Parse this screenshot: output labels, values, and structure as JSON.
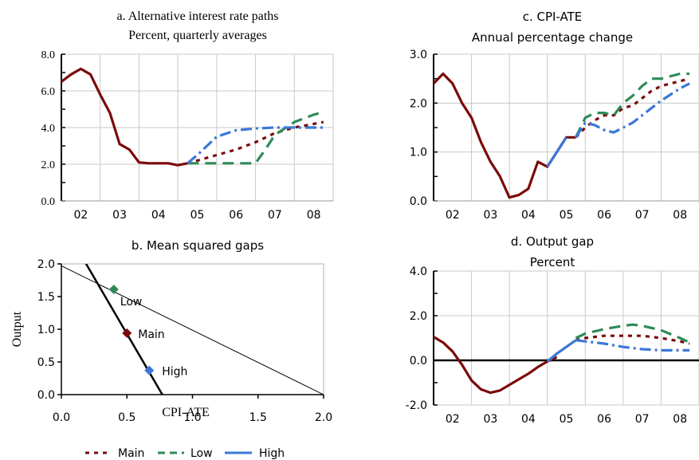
{
  "colors": {
    "main": "#7b0a0a",
    "low": "#2e8b57",
    "high": "#3a78d8"
  },
  "legend": {
    "main": "Main",
    "low": "Low",
    "high": "High"
  },
  "chart_data": [
    {
      "id": "a",
      "type": "line",
      "title": "a. Alternative interest rate paths",
      "subtitle": "Percent, quarterly averages",
      "ylim": [
        0,
        8
      ],
      "yticks": [
        "0.0",
        "2.0",
        "4.0",
        "6.0",
        "8.0"
      ],
      "xlim": [
        2002,
        2009
      ],
      "xticks": [
        "02",
        "03",
        "04",
        "05",
        "06",
        "07",
        "08"
      ],
      "grid": true,
      "series": [
        {
          "name": "Main",
          "style": "solid",
          "points": [
            [
              2002.0,
              6.5
            ],
            [
              2002.25,
              6.9
            ],
            [
              2002.5,
              7.2
            ],
            [
              2002.75,
              6.9
            ],
            [
              2003.0,
              5.8
            ],
            [
              2003.25,
              4.8
            ],
            [
              2003.5,
              3.1
            ],
            [
              2003.75,
              2.8
            ],
            [
              2004.0,
              2.1
            ],
            [
              2004.25,
              2.05
            ],
            [
              2004.5,
              2.05
            ],
            [
              2004.75,
              2.05
            ],
            [
              2005.0,
              1.95
            ],
            [
              2005.25,
              2.05
            ]
          ]
        },
        {
          "name": "Main",
          "style": "dotted",
          "points": [
            [
              2005.25,
              2.05
            ],
            [
              2005.5,
              2.2
            ],
            [
              2006.0,
              2.5
            ],
            [
              2006.5,
              2.8
            ],
            [
              2007.0,
              3.2
            ],
            [
              2007.5,
              3.7
            ],
            [
              2008.0,
              4.0
            ],
            [
              2008.75,
              4.3
            ]
          ]
        },
        {
          "name": "Low",
          "style": "dashed",
          "points": [
            [
              2005.25,
              2.05
            ],
            [
              2006.0,
              2.05
            ],
            [
              2006.5,
              2.05
            ],
            [
              2007.0,
              2.05
            ],
            [
              2007.25,
              2.8
            ],
            [
              2007.5,
              3.6
            ],
            [
              2008.0,
              4.3
            ],
            [
              2008.5,
              4.7
            ],
            [
              2008.75,
              4.85
            ]
          ]
        },
        {
          "name": "High",
          "style": "dashdot",
          "points": [
            [
              2005.25,
              2.05
            ],
            [
              2005.5,
              2.5
            ],
            [
              2005.75,
              3.0
            ],
            [
              2006.0,
              3.5
            ],
            [
              2006.5,
              3.85
            ],
            [
              2007.0,
              3.95
            ],
            [
              2007.5,
              4.0
            ],
            [
              2008.0,
              4.0
            ],
            [
              2008.75,
              4.0
            ]
          ]
        }
      ]
    },
    {
      "id": "c",
      "type": "line",
      "title": "c. CPI-ATE",
      "subtitle": "Annual percentage change",
      "ylim": [
        0,
        3
      ],
      "yticks": [
        "0.0",
        "1.0",
        "2.0",
        "3.0"
      ],
      "xlim": [
        2002,
        2009
      ],
      "xticks": [
        "02",
        "03",
        "04",
        "05",
        "06",
        "07",
        "08"
      ],
      "grid": true,
      "series": [
        {
          "name": "Main",
          "style": "solid",
          "points": [
            [
              2002.0,
              2.4
            ],
            [
              2002.25,
              2.6
            ],
            [
              2002.5,
              2.4
            ],
            [
              2002.75,
              2.0
            ],
            [
              2003.0,
              1.7
            ],
            [
              2003.25,
              1.2
            ],
            [
              2003.5,
              0.8
            ],
            [
              2003.75,
              0.5
            ],
            [
              2004.0,
              0.07
            ],
            [
              2004.25,
              0.12
            ],
            [
              2004.5,
              0.25
            ],
            [
              2004.75,
              0.8
            ],
            [
              2005.0,
              0.7
            ],
            [
              2005.25,
              1.0
            ],
            [
              2005.5,
              1.3
            ],
            [
              2005.75,
              1.3
            ]
          ]
        },
        {
          "name": "High",
          "style": "solid",
          "points": [
            [
              2005.0,
              0.7
            ],
            [
              2005.25,
              1.0
            ],
            [
              2005.5,
              1.3
            ]
          ]
        },
        {
          "name": "Main",
          "style": "dotted",
          "points": [
            [
              2005.75,
              1.3
            ],
            [
              2006.0,
              1.5
            ],
            [
              2006.25,
              1.65
            ],
            [
              2006.5,
              1.75
            ],
            [
              2006.75,
              1.75
            ],
            [
              2007.0,
              1.9
            ],
            [
              2007.25,
              1.95
            ],
            [
              2007.5,
              2.1
            ],
            [
              2007.75,
              2.25
            ],
            [
              2008.0,
              2.35
            ],
            [
              2008.5,
              2.45
            ],
            [
              2008.75,
              2.5
            ]
          ]
        },
        {
          "name": "Low",
          "style": "dashed",
          "points": [
            [
              2005.75,
              1.3
            ],
            [
              2006.0,
              1.7
            ],
            [
              2006.25,
              1.8
            ],
            [
              2006.5,
              1.8
            ],
            [
              2006.75,
              1.75
            ],
            [
              2007.0,
              2.0
            ],
            [
              2007.25,
              2.15
            ],
            [
              2007.5,
              2.35
            ],
            [
              2007.75,
              2.5
            ],
            [
              2008.0,
              2.5
            ],
            [
              2008.5,
              2.6
            ],
            [
              2008.75,
              2.6
            ]
          ]
        },
        {
          "name": "High",
          "style": "dashdot",
          "points": [
            [
              2005.75,
              1.3
            ],
            [
              2006.0,
              1.6
            ],
            [
              2006.25,
              1.55
            ],
            [
              2006.5,
              1.45
            ],
            [
              2006.75,
              1.4
            ],
            [
              2007.0,
              1.5
            ],
            [
              2007.25,
              1.6
            ],
            [
              2007.5,
              1.75
            ],
            [
              2007.75,
              1.9
            ],
            [
              2008.0,
              2.05
            ],
            [
              2008.5,
              2.3
            ],
            [
              2008.75,
              2.4
            ]
          ]
        }
      ]
    },
    {
      "id": "b",
      "type": "scatter",
      "title": "b. Mean squared gaps",
      "xlabel": "CPI-ATE",
      "ylabel": "Output",
      "xlim": [
        0,
        2
      ],
      "ylim": [
        0,
        2
      ],
      "xticks": [
        "0.0",
        "0.5",
        "1.0",
        "1.5",
        "2.0"
      ],
      "yticks": [
        "0.0",
        "0.5",
        "1.0",
        "1.5",
        "2.0"
      ],
      "grid": false,
      "lines": [
        {
          "style": "thick",
          "from": [
            0.16,
            2.1
          ],
          "to": [
            0.77,
            0.0
          ]
        },
        {
          "style": "thin",
          "from": [
            0.0,
            1.97
          ],
          "to": [
            2.0,
            0.0
          ]
        }
      ],
      "points": [
        {
          "name": "Low",
          "x": 0.4,
          "y": 1.61
        },
        {
          "name": "Main",
          "x": 0.5,
          "y": 0.94
        },
        {
          "name": "High",
          "x": 0.67,
          "y": 0.37
        }
      ],
      "labels": [
        "Low",
        "Main",
        "High"
      ]
    },
    {
      "id": "d",
      "type": "line",
      "title": "d. Output gap",
      "subtitle": "Percent",
      "ylim": [
        -2,
        4
      ],
      "yticks": [
        "-2.0",
        "0.0",
        "2.0",
        "4.0"
      ],
      "xlim": [
        2002,
        2009
      ],
      "xticks": [
        "02",
        "03",
        "04",
        "05",
        "06",
        "07",
        "08"
      ],
      "grid": true,
      "series": [
        {
          "name": "Main",
          "style": "solid",
          "points": [
            [
              2002.0,
              1.05
            ],
            [
              2002.25,
              0.8
            ],
            [
              2002.5,
              0.4
            ],
            [
              2002.75,
              -0.2
            ],
            [
              2003.0,
              -0.9
            ],
            [
              2003.25,
              -1.3
            ],
            [
              2003.5,
              -1.45
            ],
            [
              2003.75,
              -1.35
            ],
            [
              2004.0,
              -1.1
            ],
            [
              2004.25,
              -0.85
            ],
            [
              2004.5,
              -0.6
            ],
            [
              2004.75,
              -0.3
            ],
            [
              2005.0,
              -0.05
            ],
            [
              2005.25,
              0.15
            ]
          ]
        },
        {
          "name": "High",
          "style": "solid",
          "points": [
            [
              2005.0,
              -0.05
            ],
            [
              2005.25,
              0.3
            ],
            [
              2005.5,
              0.6
            ],
            [
              2005.75,
              0.9
            ]
          ]
        },
        {
          "name": "Main",
          "style": "dotted",
          "points": [
            [
              2005.75,
              0.9
            ],
            [
              2006.0,
              1.0
            ],
            [
              2006.5,
              1.1
            ],
            [
              2007.0,
              1.1
            ],
            [
              2007.5,
              1.1
            ],
            [
              2008.0,
              1.0
            ],
            [
              2008.5,
              0.85
            ],
            [
              2008.75,
              0.75
            ]
          ]
        },
        {
          "name": "Low",
          "style": "dashed",
          "points": [
            [
              2005.75,
              1.0
            ],
            [
              2006.0,
              1.2
            ],
            [
              2006.5,
              1.4
            ],
            [
              2007.0,
              1.55
            ],
            [
              2007.25,
              1.6
            ],
            [
              2007.5,
              1.55
            ],
            [
              2008.0,
              1.35
            ],
            [
              2008.5,
              1.0
            ],
            [
              2008.75,
              0.8
            ]
          ]
        },
        {
          "name": "High",
          "style": "dashdot",
          "points": [
            [
              2005.75,
              0.9
            ],
            [
              2006.0,
              0.85
            ],
            [
              2006.5,
              0.75
            ],
            [
              2007.0,
              0.6
            ],
            [
              2007.5,
              0.5
            ],
            [
              2008.0,
              0.45
            ],
            [
              2008.5,
              0.45
            ],
            [
              2008.75,
              0.45
            ]
          ]
        }
      ]
    }
  ]
}
